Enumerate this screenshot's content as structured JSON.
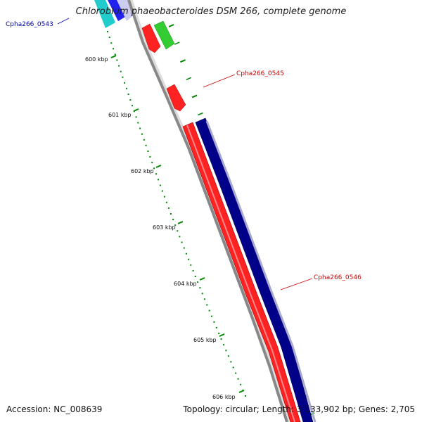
{
  "title": "Chlorobium phaeobacteroides DSM 266, complete genome",
  "accession": "Accession: NC_008639",
  "summary": "Topology: circular; Length: 3,133,902 bp; Genes: 2,705",
  "ruler": {
    "labels": [
      "600 kbp",
      "601 kbp",
      "602 kbp",
      "603 kbp",
      "604 kbp",
      "605 kbp",
      "606 kbp"
    ]
  },
  "genes": [
    {
      "id": "Cpha266_0543",
      "color": "#0000aa"
    },
    {
      "id": "Cpha266_0545",
      "color": "#cc0000"
    },
    {
      "id": "Cpha266_0546",
      "color": "#cc0000"
    }
  ],
  "colors": {
    "backbone": "#888888",
    "forward_cds": "#ff2222",
    "reverse_cds": "#000088",
    "rna_gene": "#33cc33",
    "hit_cyan": "#22cccc",
    "hit_blue": "#2222ee",
    "shadow": "#ccccee",
    "ruler": "#008800"
  }
}
